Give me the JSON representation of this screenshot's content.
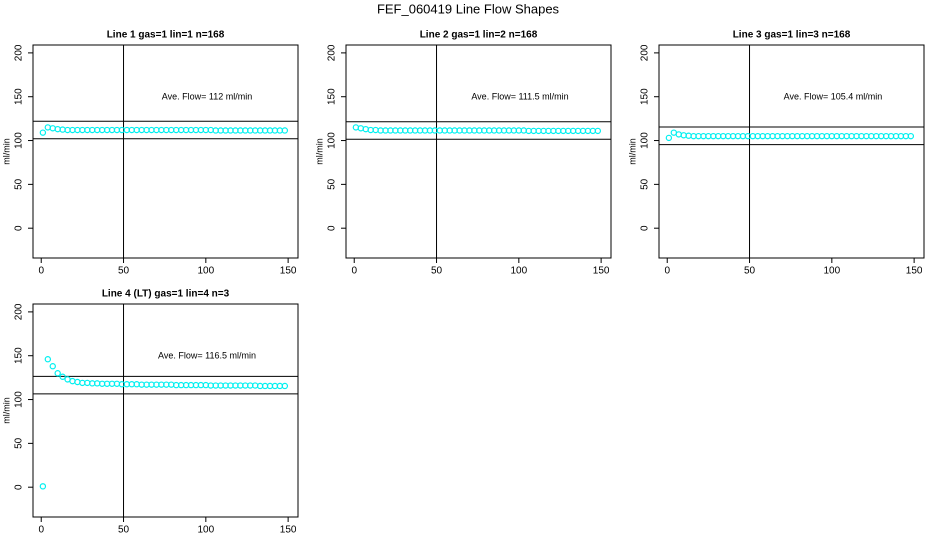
{
  "title": "FEF_060419  Line Flow Shapes",
  "chart_data": [
    {
      "type": "scatter",
      "title": "Line 1 gas=1 lin=1 n=168",
      "ylabel": "ml/min",
      "annotation": "Ave. Flow=  112  ml/min",
      "color": "#00f0f0",
      "xlim": [
        -5,
        156
      ],
      "ylim": [
        -34,
        209
      ],
      "xticks": [
        0,
        50,
        100,
        150
      ],
      "yticks": [
        0,
        50,
        100,
        150,
        200
      ],
      "vline": 50,
      "hlines": [
        102,
        122
      ],
      "x": [
        1,
        4,
        7,
        10,
        13,
        16,
        19,
        22,
        25,
        28,
        31,
        34,
        37,
        40,
        43,
        46,
        49,
        52,
        55,
        58,
        61,
        64,
        67,
        70,
        73,
        76,
        79,
        82,
        85,
        88,
        91,
        94,
        97,
        100,
        103,
        106,
        109,
        112,
        115,
        118,
        121,
        124,
        127,
        130,
        133,
        136,
        139,
        142,
        145,
        148
      ],
      "values": [
        109,
        115,
        114,
        113,
        112.5,
        112,
        112,
        112,
        112,
        112,
        112,
        112,
        112,
        112,
        112,
        112,
        112,
        112,
        112,
        112,
        112,
        112,
        112,
        112,
        112,
        112,
        112,
        112,
        112,
        112,
        112,
        112,
        112,
        112,
        112,
        111.5,
        111.5,
        111.5,
        111.5,
        111.5,
        111.5,
        111.5,
        111.5,
        111.5,
        111.5,
        111.5,
        111.5,
        111.5,
        111.5,
        111.5
      ]
    },
    {
      "type": "scatter",
      "title": "Line 2 gas=1 lin=2 n=168",
      "ylabel": "ml/min",
      "annotation": "Ave. Flow=  111.5  ml/min",
      "color": "#00f0f0",
      "xlim": [
        -5,
        156
      ],
      "ylim": [
        -34,
        209
      ],
      "xticks": [
        0,
        50,
        100,
        150
      ],
      "yticks": [
        0,
        50,
        100,
        150,
        200
      ],
      "vline": 50,
      "hlines": [
        101.5,
        121.5
      ],
      "x": [
        1,
        4,
        7,
        10,
        13,
        16,
        19,
        22,
        25,
        28,
        31,
        34,
        37,
        40,
        43,
        46,
        49,
        52,
        55,
        58,
        61,
        64,
        67,
        70,
        73,
        76,
        79,
        82,
        85,
        88,
        91,
        94,
        97,
        100,
        103,
        106,
        109,
        112,
        115,
        118,
        121,
        124,
        127,
        130,
        133,
        136,
        139,
        142,
        145,
        148
      ],
      "values": [
        115,
        114,
        113,
        112,
        112,
        111.5,
        111.5,
        111.5,
        111.5,
        111.5,
        111.5,
        111.5,
        111.5,
        111.5,
        111.5,
        111.5,
        111.5,
        111.5,
        111.5,
        111.5,
        111.5,
        111.5,
        111.5,
        111.5,
        111.5,
        111.5,
        111.5,
        111.5,
        111.5,
        111.5,
        111.5,
        111.5,
        111.5,
        111.5,
        111.5,
        111,
        111,
        111,
        111,
        111,
        111,
        111,
        111,
        111,
        111,
        111,
        111,
        111,
        111,
        111
      ]
    },
    {
      "type": "scatter",
      "title": "Line 3 gas=1 lin=3 n=168",
      "ylabel": "ml/min",
      "annotation": "Ave. Flow=  105.4  ml/min",
      "color": "#00f0f0",
      "xlim": [
        -5,
        156
      ],
      "ylim": [
        -34,
        209
      ],
      "xticks": [
        0,
        50,
        100,
        150
      ],
      "yticks": [
        0,
        50,
        100,
        150,
        200
      ],
      "vline": 50,
      "hlines": [
        95.4,
        115.4
      ],
      "x": [
        1,
        4,
        7,
        10,
        13,
        16,
        19,
        22,
        25,
        28,
        31,
        34,
        37,
        40,
        43,
        46,
        49,
        52,
        55,
        58,
        61,
        64,
        67,
        70,
        73,
        76,
        79,
        82,
        85,
        88,
        91,
        94,
        97,
        100,
        103,
        106,
        109,
        112,
        115,
        118,
        121,
        124,
        127,
        130,
        133,
        136,
        139,
        142,
        145,
        148
      ],
      "values": [
        103,
        109,
        107,
        106,
        105.5,
        105,
        105,
        105,
        105,
        105,
        105,
        105,
        105,
        105,
        105,
        105,
        105,
        105,
        105,
        105,
        105,
        105,
        105,
        105,
        105,
        105,
        105,
        105,
        105,
        105,
        105,
        105,
        105,
        105,
        105,
        105,
        105,
        105,
        105,
        105,
        105,
        105,
        105,
        105,
        105,
        105,
        105,
        105,
        105,
        105
      ]
    },
    {
      "type": "scatter",
      "title": "Line 4 (LT) gas=1 lin=4 n=3",
      "ylabel": "ml/min",
      "annotation": "Ave. Flow=  116.5  ml/min",
      "color": "#00f0f0",
      "xlim": [
        -5,
        156
      ],
      "ylim": [
        -34,
        209
      ],
      "xticks": [
        0,
        50,
        100,
        150
      ],
      "yticks": [
        0,
        50,
        100,
        150,
        200
      ],
      "vline": 50,
      "hlines": [
        106.5,
        126.5
      ],
      "x": [
        1,
        4,
        7,
        10,
        13,
        16,
        19,
        22,
        25,
        28,
        31,
        34,
        37,
        40,
        43,
        46,
        49,
        52,
        55,
        58,
        61,
        64,
        67,
        70,
        73,
        76,
        79,
        82,
        85,
        88,
        91,
        94,
        97,
        100,
        103,
        106,
        109,
        112,
        115,
        118,
        121,
        124,
        127,
        130,
        133,
        136,
        139,
        142,
        145,
        148
      ],
      "values": [
        1,
        146,
        138,
        130,
        126,
        123,
        121,
        120,
        119,
        119,
        118.5,
        118.5,
        118,
        118,
        118,
        118,
        117.5,
        117.5,
        117.5,
        117.5,
        117,
        117,
        117,
        117,
        117,
        117,
        117,
        116.5,
        116.5,
        116.5,
        116.5,
        116.5,
        116.5,
        116.5,
        116,
        116,
        116,
        116,
        116,
        116,
        116,
        116,
        116,
        116,
        115.5,
        115.5,
        115.5,
        115.5,
        115.5,
        115.5
      ]
    }
  ]
}
